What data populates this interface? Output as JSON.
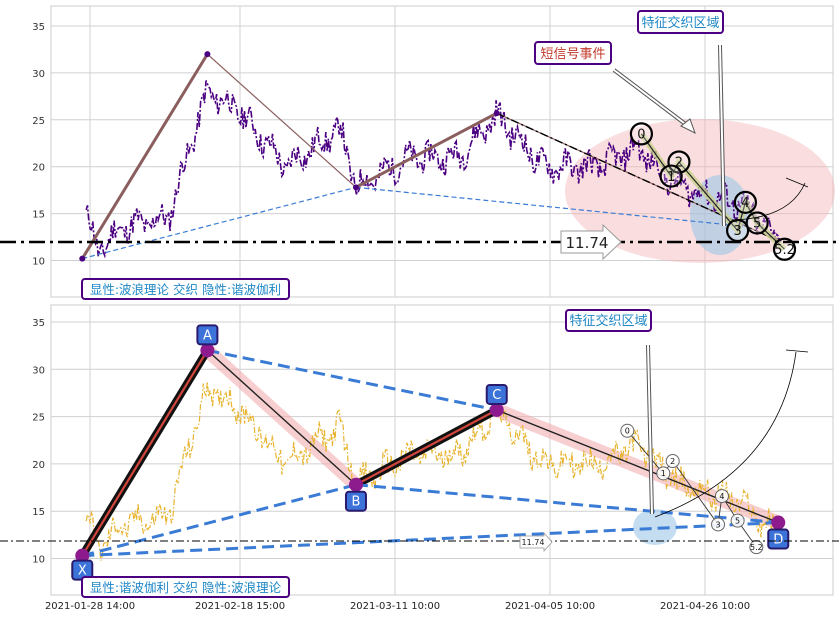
{
  "chart_data": [
    {
      "type": "line",
      "ylim": [
        6,
        37
      ],
      "yticks": [
        10,
        15,
        20,
        25,
        30,
        35
      ],
      "grid": true,
      "price_color": "#4b0082",
      "support_line": {
        "value": 11.74,
        "label": "11.74"
      },
      "pivots": [
        {
          "x": 0.04,
          "y": 10.2
        },
        {
          "x": 0.2,
          "y": 32.0
        },
        {
          "x": 0.39,
          "y": 17.8
        },
        {
          "x": 0.57,
          "y": 25.7
        },
        {
          "x": 0.93,
          "y": 12.1
        }
      ],
      "numbered_markers": [
        {
          "label": "0",
          "x": 0.755,
          "y": 23.5
        },
        {
          "label": "2",
          "x": 0.803,
          "y": 20.5
        },
        {
          "label": "1",
          "x": 0.793,
          "y": 19.0
        },
        {
          "label": "4",
          "x": 0.888,
          "y": 16.2
        },
        {
          "label": "3",
          "x": 0.878,
          "y": 13.2
        },
        {
          "label": "5",
          "x": 0.903,
          "y": 14.0
        },
        {
          "label": "5.2",
          "x": 0.938,
          "y": 11.2
        }
      ],
      "annotations": {
        "zone_label": "特征交织区域",
        "signal_label": "短信号事件",
        "pattern_label": "显性:波浪理论 交织 隐性:谐波伽利"
      }
    },
    {
      "type": "line",
      "ylim": [
        6,
        37
      ],
      "yticks": [
        10,
        15,
        20,
        25,
        30,
        35
      ],
      "grid": true,
      "price_color": "#e8b430",
      "support_line": {
        "value": 11.74,
        "label": "11.74"
      },
      "x_tick_labels": [
        "2021-01-28 14:00",
        "2021-02-18 15:00",
        "2021-03-11 10:00",
        "2021-04-05 10:00",
        "2021-04-26 10:00"
      ],
      "harmonic_points": [
        {
          "label": "X",
          "x": 0.04,
          "y": 10.3
        },
        {
          "label": "A",
          "x": 0.2,
          "y": 32.0
        },
        {
          "label": "B",
          "x": 0.39,
          "y": 17.8
        },
        {
          "label": "C",
          "x": 0.57,
          "y": 25.7
        },
        {
          "label": "D",
          "x": 0.93,
          "y": 13.8
        }
      ],
      "numbered_markers": [
        {
          "label": "0",
          "x": 0.737,
          "y": 23.5
        },
        {
          "label": "2",
          "x": 0.795,
          "y": 20.3
        },
        {
          "label": "1",
          "x": 0.783,
          "y": 19.0
        },
        {
          "label": "4",
          "x": 0.858,
          "y": 16.6
        },
        {
          "label": "3",
          "x": 0.853,
          "y": 13.6
        },
        {
          "label": "5",
          "x": 0.878,
          "y": 14.0
        },
        {
          "label": "5.2",
          "x": 0.902,
          "y": 11.2
        }
      ],
      "annotations": {
        "zone_label": "特征交织区域",
        "pattern_label": "显性:谐波伽利 交织 隐性:波浪理论"
      }
    }
  ]
}
